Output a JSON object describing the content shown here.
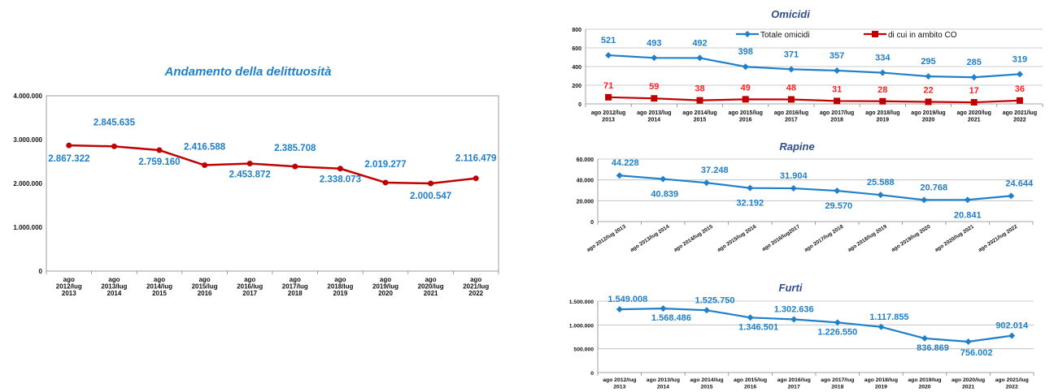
{
  "chart_data": [
    {
      "id": "delittuosita",
      "type": "line",
      "title": "Andamento della delittuosità",
      "categories": [
        "ago 2012/lug 2013",
        "ago 2013/lug 2014",
        "ago 2014/lug 2015",
        "ago 2015/lug 2016",
        "ago 2016/lug 2017",
        "ago 2017/lug 2018",
        "ago 2018/lug 2019",
        "ago 2019/lug 2020",
        "ago 2020/lug 2021",
        "ago 2021/lug 2022"
      ],
      "category_lines": [
        [
          "ago",
          "2012/lug",
          "2013"
        ],
        [
          "ago",
          "2013/lug",
          "2014"
        ],
        [
          "ago",
          "2014/lug",
          "2015"
        ],
        [
          "ago",
          "2015/lug",
          "2016"
        ],
        [
          "ago",
          "2016/lug",
          "2017"
        ],
        [
          "ago",
          "2017/lug",
          "2018"
        ],
        [
          "ago",
          "2018/lug",
          "2019"
        ],
        [
          "ago",
          "2019/lug",
          "2020"
        ],
        [
          "ago",
          "2020/lug",
          "2021"
        ],
        [
          "ago",
          "2021/lug",
          "2022"
        ]
      ],
      "series": [
        {
          "values": [
            2867322,
            2845635,
            2759160,
            2416588,
            2453872,
            2385708,
            2338073,
            2019277,
            2000547,
            2116479
          ],
          "labels": [
            "2.867.322",
            "2.845.635",
            "2.759.160",
            "2.416.588",
            "2.453.872",
            "2.385.708",
            "2.338.073",
            "2.019.277",
            "2.000.547",
            "2.116.479"
          ],
          "color": "#c00000",
          "label_color": "#1f7fc8"
        }
      ],
      "yticks": [
        "0",
        "1.000.000",
        "2.000.000",
        "3.000.000",
        "4.000.000"
      ],
      "ylim": [
        0,
        4000000
      ],
      "grid": false,
      "title_color": "#1f7fc8"
    },
    {
      "id": "omicidi",
      "type": "line",
      "title": "Omicidi",
      "categories": [
        "ago 2012/lug 2013",
        "ago 2013/lug 2014",
        "ago 2014/lug 2015",
        "ago 2015/lug 2016",
        "ago 2016/lug 2017",
        "ago 2017/lug 2018",
        "ago 2018/lug 2019",
        "ago 2019/lug 2020",
        "ago 2020/lug 2021",
        "ago 2021/lug 2022"
      ],
      "category_lines": [
        [
          "ago 2012/lug",
          "2013"
        ],
        [
          "ago 2013/lug",
          "2014"
        ],
        [
          "ago 2014/lug",
          "2015"
        ],
        [
          "ago 2015/lug",
          "2016"
        ],
        [
          "ago 2016/lug",
          "2017"
        ],
        [
          "ago 2017/lug",
          "2018"
        ],
        [
          "ago 2018/lug",
          "2019"
        ],
        [
          "ago 2019/lug",
          "2020"
        ],
        [
          "ago 2020/lug",
          "2021"
        ],
        [
          "ago 2021/lug",
          "2022"
        ]
      ],
      "series": [
        {
          "name": "Totale omicidi",
          "values": [
            521,
            493,
            492,
            398,
            371,
            357,
            334,
            295,
            285,
            319
          ],
          "labels": [
            "521",
            "493",
            "492",
            "398",
            "371",
            "357",
            "334",
            "295",
            "285",
            "319"
          ],
          "color": "#1f7fc8",
          "label_color": "#1f7fc8",
          "marker": "diamond"
        },
        {
          "name": "di cui in ambito CO",
          "values": [
            71,
            59,
            38,
            49,
            48,
            31,
            28,
            22,
            17,
            36
          ],
          "labels": [
            "71",
            "59",
            "38",
            "49",
            "48",
            "31",
            "28",
            "22",
            "17",
            "36"
          ],
          "color": "#c00000",
          "label_color": "#ff2020",
          "marker": "square"
        }
      ],
      "yticks": [
        "0",
        "200",
        "400",
        "600",
        "800"
      ],
      "ylim": [
        0,
        800
      ],
      "grid": true,
      "legend": "top",
      "title_color": "#2f4f8f"
    },
    {
      "id": "rapine",
      "type": "line",
      "title": "Rapine",
      "categories": [
        "ago 2012/lug 2013",
        "ago 2013/lug 2014",
        "ago 2014/lug 2015",
        "ago 2015/lug 2016",
        "ago 2016/lug2017",
        "ago 2017/lug 2018",
        "ago 2018/lug 2019",
        "ago 2019/lug 2020",
        "ago 2020/lug 2021",
        "ago 2021/lug 2022"
      ],
      "series": [
        {
          "values": [
            44228,
            40839,
            37248,
            32192,
            31904,
            29570,
            25588,
            20768,
            20841,
            24644
          ],
          "labels": [
            "44.228",
            "40.839",
            "37.248",
            "32.192",
            "31.904",
            "29.570",
            "25.588",
            "20.768",
            "20.841",
            "24.644"
          ],
          "color": "#1f7fc8",
          "label_color": "#1f7fc8",
          "marker": "diamond"
        }
      ],
      "yticks": [
        "0",
        "20.000",
        "40.000",
        "60.000"
      ],
      "ylim": [
        0,
        60000
      ],
      "grid": true,
      "title_color": "#2f4f8f"
    },
    {
      "id": "furti",
      "type": "line",
      "title": "Furti",
      "categories": [
        "ago 2012/lug 2013",
        "ago 2013/lug 2014",
        "ago 2014/lug 2015",
        "ago 2015/lug 2016",
        "ago 2016/lug 2017",
        "ago 2017/lug 2018",
        "ago 2018/lug 2019",
        "ago 2019/lug 2020",
        "ago 2020/lug 2021",
        "ago 2021/lug 2022"
      ],
      "category_lines": [
        [
          "ago 2012/lug",
          "2013"
        ],
        [
          "ago 2013/lug",
          "2014"
        ],
        [
          "ago 2014/lug",
          "2015"
        ],
        [
          "ago 2015/lug",
          "2016"
        ],
        [
          "ago 2016/lug",
          "2017"
        ],
        [
          "ago 2017/lug",
          "2018"
        ],
        [
          "ago 2018/lug",
          "2019"
        ],
        [
          "ago 2019/lug",
          "2020"
        ],
        [
          "ago 2020/lug",
          "2021"
        ],
        [
          "ago 2021/lug",
          "2022"
        ]
      ],
      "series": [
        {
          "values": [
            1549008,
            1568486,
            1525750,
            1346501,
            1302636,
            1226550,
            1117855,
            836869,
            756002,
            902014
          ],
          "labels": [
            "1.549.008",
            "1.568.486",
            "1.525.750",
            "1.346.501",
            "1.302.636",
            "1.226.550",
            "1.117.855",
            "836.869",
            "756.002",
            "902.014"
          ],
          "color": "#1f7fc8",
          "label_color": "#1f7fc8",
          "marker": "diamond"
        }
      ],
      "yticks": [
        "0",
        "500.000",
        "1.000.000",
        "1.500.000"
      ],
      "ylim": [
        0,
        1750000
      ],
      "grid": true,
      "title_color": "#2f4f8f"
    }
  ]
}
